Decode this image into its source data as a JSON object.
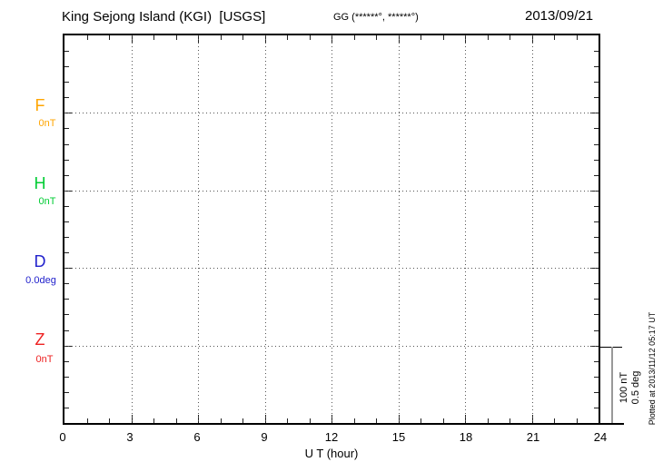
{
  "header": {
    "title": "King Sejong Island (KGI)  [USGS]",
    "station_coordinates": "GG (******°, ******°)",
    "date": "2013/09/21"
  },
  "channels": [
    {
      "label": "F",
      "value": "0nT",
      "color": "#FFA500"
    },
    {
      "label": "H",
      "value": "0nT",
      "color": "#00CC33"
    },
    {
      "label": "D",
      "value": "0.0deg",
      "color": "#2222CC"
    },
    {
      "label": "Z",
      "value": "0nT",
      "color": "#EE2222"
    }
  ],
  "x_axis": {
    "label": "U T (hour)",
    "ticks": [
      "0",
      "3",
      "6",
      "9",
      "12",
      "15",
      "18",
      "21",
      "24"
    ]
  },
  "scale_bar": {
    "amplitude": "100 nT",
    "angle": "0.5 deg"
  },
  "footer_note": "Plotted at 2013/11/12 05:17 UT",
  "chart_data": {
    "type": "line",
    "title": "King Sejong Island (KGI) [USGS] magnetogram, 2013/09/21",
    "xlabel": "U T (hour)",
    "ylabel": "",
    "x_range": [
      0,
      24
    ],
    "x_tick_values": [
      0,
      3,
      6,
      9,
      12,
      15,
      18,
      21,
      24
    ],
    "grid": true,
    "series": [
      {
        "name": "F",
        "baseline_label": "0nT",
        "color": "#FFA500",
        "values": []
      },
      {
        "name": "H",
        "baseline_label": "0nT",
        "color": "#00CC33",
        "values": []
      },
      {
        "name": "D",
        "baseline_label": "0.0deg",
        "color": "#2222CC",
        "values": []
      },
      {
        "name": "Z",
        "baseline_label": "0nT",
        "color": "#EE2222",
        "values": []
      }
    ],
    "scale": {
      "per_division_nT": 100,
      "per_division_deg": 0.5
    },
    "note": "No data traces are drawn; only dotted zero baselines for each channel at 3-hour vertical gridlines.",
    "annotations": [
      "GG (******°, ******°)",
      "Plotted at 2013/11/12 05:17 UT"
    ]
  }
}
